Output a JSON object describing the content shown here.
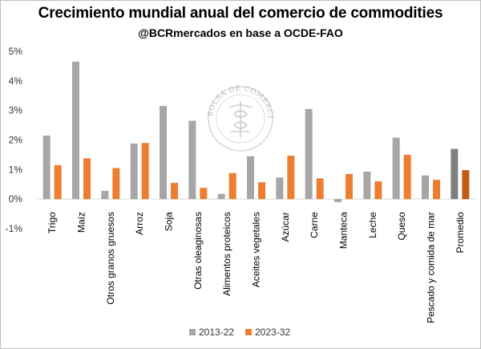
{
  "title": "Crecimiento mundial anual del comercio de commodities",
  "subtitle": "@BCRmercados en base a OCDE-FAO",
  "watermark": {
    "text": "BOLSA DE COMERCIO DE ROSARIO"
  },
  "chart_data": {
    "type": "bar",
    "categories": [
      "Trigo",
      "Maíz",
      "Otros granos gruesos",
      "Arroz",
      "Soja",
      "Otras oleaginosas",
      "Alimentos proteicos",
      "Aceites vegetales",
      "Azúcar",
      "Carne",
      "Manteca",
      "Leche",
      "Queso",
      "Pescado y comida de mar",
      "Promedio"
    ],
    "series": [
      {
        "name": "2013-22",
        "color": "#a6a6a6",
        "highlight_color": "#7f7f7f",
        "values": [
          2.15,
          4.65,
          0.28,
          1.88,
          3.15,
          2.65,
          0.18,
          1.45,
          0.73,
          3.05,
          -0.1,
          0.93,
          2.08,
          0.8,
          1.7
        ]
      },
      {
        "name": "2023-32",
        "color": "#ed7d31",
        "highlight_color": "#c55a11",
        "values": [
          1.15,
          1.38,
          1.05,
          1.9,
          0.55,
          0.38,
          0.88,
          0.57,
          1.47,
          0.7,
          0.85,
          0.6,
          1.5,
          0.65,
          0.98
        ]
      }
    ],
    "ylim": [
      -1,
      5
    ],
    "yticks": [
      -1,
      0,
      1,
      2,
      3,
      4,
      5
    ],
    "ytick_labels": [
      "-1%",
      "0%",
      "1%",
      "2%",
      "3%",
      "4%",
      "5%"
    ],
    "highlight_category": "Promedio",
    "grid": false,
    "legend_position": "bottom"
  }
}
